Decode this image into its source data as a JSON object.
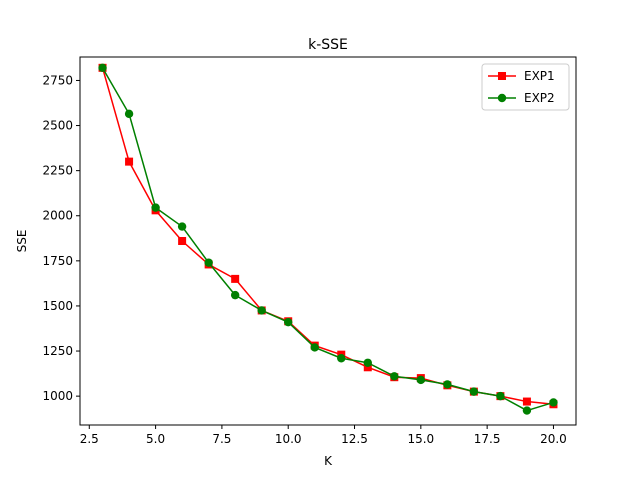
{
  "chart_data": {
    "type": "line",
    "title": "k-SSE",
    "xlabel": "K",
    "ylabel": "SSE",
    "xlim": [
      2.15,
      20.85
    ],
    "ylim": [
      840,
      2880
    ],
    "xticks": [
      2.5,
      5.0,
      7.5,
      10.0,
      12.5,
      15.0,
      17.5,
      20.0
    ],
    "xtick_labels": [
      "2.5",
      "5.0",
      "7.5",
      "10.0",
      "12.5",
      "15.0",
      "17.5",
      "20.0"
    ],
    "yticks": [
      1000,
      1250,
      1500,
      1750,
      2000,
      2250,
      2500,
      2750
    ],
    "ytick_labels": [
      "1000",
      "1250",
      "1500",
      "1750",
      "2000",
      "2250",
      "2500",
      "2750"
    ],
    "grid": false,
    "legend_position": "top-right",
    "x": [
      3,
      4,
      5,
      6,
      7,
      8,
      9,
      10,
      11,
      12,
      13,
      14,
      15,
      16,
      17,
      18,
      19,
      20
    ],
    "series": [
      {
        "name": "EXP1",
        "color": "#ff0000",
        "marker": "square",
        "values": [
          2820,
          2300,
          2030,
          1860,
          1730,
          1650,
          1475,
          1415,
          1280,
          1230,
          1160,
          1105,
          1100,
          1060,
          1025,
          1000,
          970,
          955
        ]
      },
      {
        "name": "EXP2",
        "color": "#008000",
        "marker": "circle",
        "values": [
          2820,
          2565,
          2045,
          1940,
          1740,
          1560,
          1475,
          1410,
          1270,
          1210,
          1185,
          1110,
          1090,
          1065,
          1025,
          1000,
          920,
          965
        ]
      }
    ]
  }
}
